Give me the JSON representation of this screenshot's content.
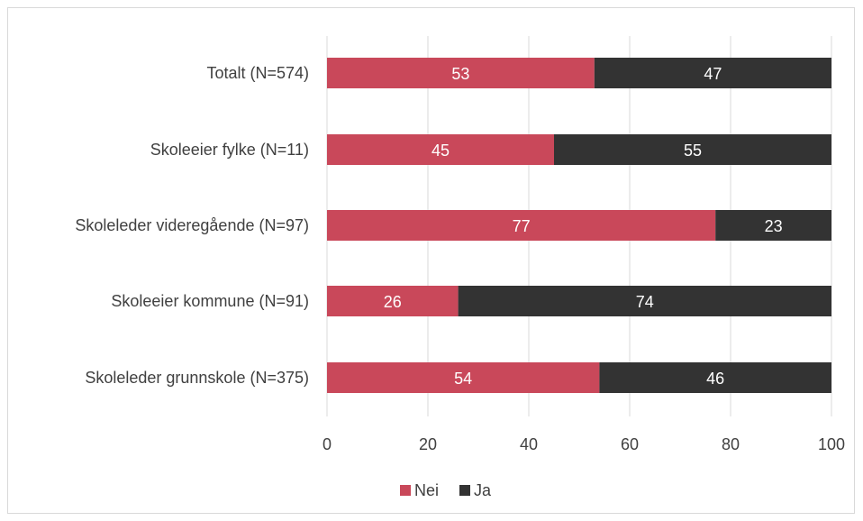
{
  "chart_data": {
    "type": "bar",
    "orientation": "horizontal",
    "stacked": true,
    "categories": [
      "Totalt (N=574)",
      "Skoleeier fylke (N=11)",
      "Skoleleder videregående (N=97)",
      "Skoleeier kommune (N=91)",
      "Skoleleder grunnskole (N=375)"
    ],
    "series": [
      {
        "name": "Nei",
        "color": "#c9485a",
        "values": [
          53,
          45,
          77,
          26,
          54
        ]
      },
      {
        "name": "Ja",
        "color": "#333333",
        "values": [
          47,
          55,
          23,
          74,
          46
        ]
      }
    ],
    "xlim": [
      0,
      100
    ],
    "xticks": [
      "0",
      "20",
      "40",
      "60",
      "80",
      "100"
    ],
    "grid": true,
    "legend_position": "bottom"
  }
}
